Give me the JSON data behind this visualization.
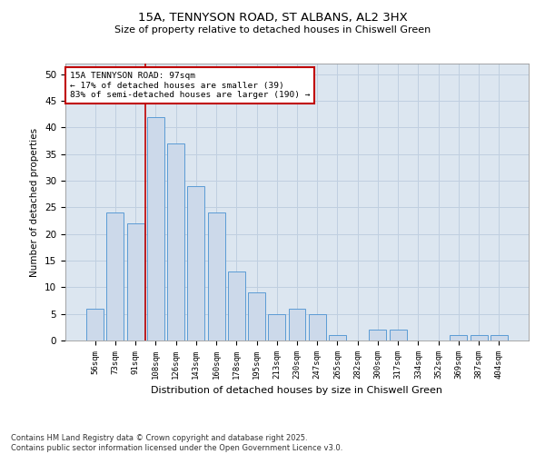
{
  "title_line1": "15A, TENNYSON ROAD, ST ALBANS, AL2 3HX",
  "title_line2": "Size of property relative to detached houses in Chiswell Green",
  "xlabel": "Distribution of detached houses by size in Chiswell Green",
  "ylabel": "Number of detached properties",
  "bar_color": "#ccd9ea",
  "bar_edge_color": "#5b9bd5",
  "categories": [
    "56sqm",
    "73sqm",
    "91sqm",
    "108sqm",
    "126sqm",
    "143sqm",
    "160sqm",
    "178sqm",
    "195sqm",
    "213sqm",
    "230sqm",
    "247sqm",
    "265sqm",
    "282sqm",
    "300sqm",
    "317sqm",
    "334sqm",
    "352sqm",
    "369sqm",
    "387sqm",
    "404sqm"
  ],
  "values": [
    6,
    24,
    22,
    42,
    37,
    29,
    24,
    13,
    9,
    5,
    6,
    5,
    1,
    0,
    2,
    2,
    0,
    0,
    1,
    1,
    1
  ],
  "ylim": [
    0,
    52
  ],
  "yticks": [
    0,
    5,
    10,
    15,
    20,
    25,
    30,
    35,
    40,
    45,
    50
  ],
  "annotation_line1": "15A TENNYSON ROAD: 97sqm",
  "annotation_line2": "← 17% of detached houses are smaller (39)",
  "annotation_line3": "83% of semi-detached houses are larger (190) →",
  "vline_color": "#c00000",
  "annotation_box_color": "#c00000",
  "grid_color": "#c0cfe0",
  "bg_color": "#dce6f0",
  "footer_line1": "Contains HM Land Registry data © Crown copyright and database right 2025.",
  "footer_line2": "Contains public sector information licensed under the Open Government Licence v3.0."
}
